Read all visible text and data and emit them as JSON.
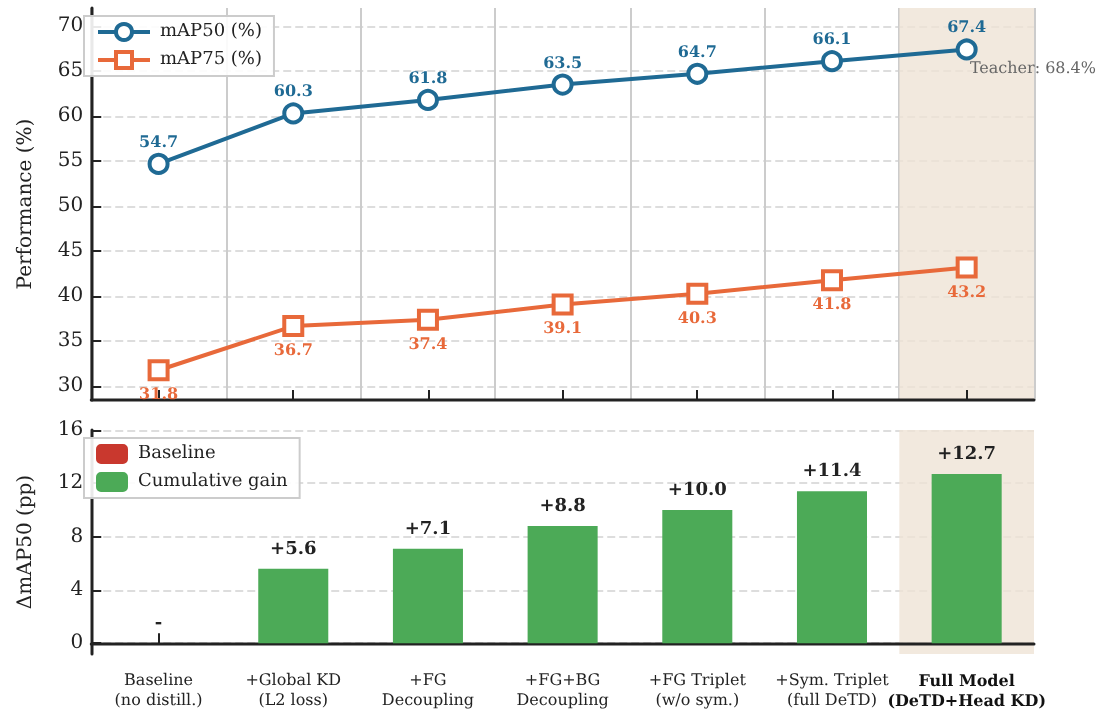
{
  "chart_data": [
    {
      "type": "line",
      "ylabel": "Performance (%)",
      "categories": [
        "Baseline\n(no distill.)",
        "+Global KD\n(L2 loss)",
        "+FG\nDecoupling",
        "+FG+BG\nDecoupling",
        "+FG Triplet\n(w/o sym.)",
        "+Sym. Triplet\n(full DeTD)",
        "Full Model\n(DeTD+Head KD)"
      ],
      "series": [
        {
          "name": "mAP50 (%)",
          "color": "#1f6a94",
          "marker": "circle",
          "values": [
            54.7,
            60.3,
            61.8,
            63.5,
            64.7,
            66.1,
            67.4
          ]
        },
        {
          "name": "mAP75 (%)",
          "color": "#e8693a",
          "marker": "square",
          "values": [
            31.8,
            36.7,
            37.4,
            39.1,
            40.3,
            41.8,
            43.2
          ]
        }
      ],
      "ylim": [
        28.5,
        72
      ],
      "yticks": [
        30,
        35,
        40,
        45,
        50,
        55,
        60,
        65,
        70
      ],
      "grid": true,
      "legend": "top left",
      "data_labels": true,
      "tick_labels": "y",
      "bands": [
        {
          "axis": "x",
          "from": "Full Model\n(DeTD+Head KD)",
          "to": "Full Model\n(DeTD+Head KD)",
          "color": "#efe4d6"
        }
      ],
      "annotations": [
        "Teacher: 68.4%"
      ]
    },
    {
      "type": "bar",
      "ylabel": "ΔmAP50 (pp)",
      "categories": [
        "Baseline\n(no distill.)",
        "+Global KD\n(L2 loss)",
        "+FG\nDecoupling",
        "+FG+BG\nDecoupling",
        "+FG Triplet\n(w/o sym.)",
        "+Sym. Triplet\n(full DeTD)",
        "Full Model\n(DeTD+Head KD)"
      ],
      "series": [
        {
          "name": "Baseline",
          "color": "#c9382e",
          "values": [
            0,
            null,
            null,
            null,
            null,
            null,
            null
          ],
          "value_labels": [
            "-",
            null,
            null,
            null,
            null,
            null,
            null
          ]
        },
        {
          "name": "Cumulative gain",
          "color": "#4caa57",
          "values": [
            null,
            5.6,
            7.1,
            8.8,
            10.0,
            11.4,
            12.7
          ],
          "value_labels": [
            null,
            "+5.6",
            "+7.1",
            "+8.8",
            "+10.0",
            "+11.4",
            "+12.7"
          ]
        }
      ],
      "ylim": [
        -0.8,
        16
      ],
      "yticks": [
        0,
        4,
        8,
        12,
        16
      ],
      "grid": "y",
      "legend": "top left",
      "bands": [
        {
          "axis": "x",
          "from": "Full Model\n(DeTD+Head KD)",
          "to": "Full Model\n(DeTD+Head KD)",
          "color": "#efe4d6"
        }
      ]
    }
  ]
}
